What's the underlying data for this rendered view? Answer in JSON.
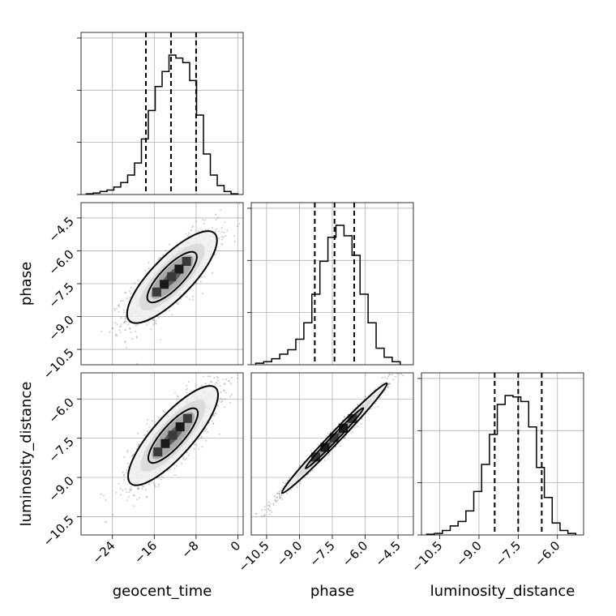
{
  "chart_data": {
    "type": "corner",
    "parameters": [
      "geocent_time",
      "phase",
      "luminosity_distance"
    ],
    "axis_labels": {
      "geocent_time": "geocent_time",
      "phase": "phase",
      "luminosity_distance": "luminosity_distance"
    },
    "ranges": {
      "geocent_time": [
        -30,
        1
      ],
      "phase": [
        -11.2,
        -3.8
      ],
      "luminosity_distance": [
        -11.2,
        -5.0
      ]
    },
    "ticks": {
      "geocent_time": [
        -24,
        -16,
        -8,
        0
      ],
      "phase": [
        -10.5,
        -9.0,
        -7.5,
        -6.0,
        -4.5
      ],
      "luminosity_distance": [
        -10.5,
        -9.0,
        -7.5,
        -6.0
      ]
    },
    "tick_labels": {
      "geocent_time": [
        "−24",
        "−16",
        "−8",
        "0"
      ],
      "phase": [
        "−10.5",
        "−9.0",
        "−7.5",
        "−6.0",
        "−4.5"
      ],
      "luminosity_distance": [
        "−10.5",
        "−9.0",
        "−7.5",
        "−6.0"
      ]
    },
    "quantiles": {
      "geocent_time": [
        -17.6,
        -12.8,
        -8.0
      ],
      "phase": [
        -8.3,
        -7.4,
        -6.5
      ],
      "luminosity_distance": [
        -8.4,
        -7.5,
        -6.6
      ]
    },
    "histograms": {
      "geocent_time": [
        0.005,
        0.01,
        0.02,
        0.03,
        0.05,
        0.08,
        0.13,
        0.21,
        0.37,
        0.56,
        0.72,
        0.82,
        0.93,
        0.91,
        0.88,
        0.76,
        0.53,
        0.27,
        0.13,
        0.06,
        0.02,
        0.005
      ],
      "phase": [
        0.01,
        0.02,
        0.04,
        0.07,
        0.1,
        0.17,
        0.28,
        0.47,
        0.69,
        0.85,
        0.93,
        0.86,
        0.73,
        0.47,
        0.28,
        0.11,
        0.05,
        0.02
      ],
      "luminosity_distance": [
        0.005,
        0.01,
        0.03,
        0.06,
        0.09,
        0.16,
        0.29,
        0.47,
        0.67,
        0.87,
        0.93,
        0.92,
        0.89,
        0.72,
        0.45,
        0.25,
        0.08,
        0.03,
        0.01
      ]
    },
    "joint": [
      {
        "x": "geocent_time",
        "y": "phase",
        "center": [
          -12.6,
          -7.2
        ],
        "sigma": [
          4.3,
          1.05
        ],
        "rho": 0.8
      },
      {
        "x": "geocent_time",
        "y": "luminosity_distance",
        "center": [
          -12.4,
          -7.4
        ],
        "sigma": [
          4.3,
          0.95
        ],
        "rho": 0.82
      },
      {
        "x": "phase",
        "y": "luminosity_distance",
        "center": [
          -7.4,
          -7.5
        ],
        "sigma": [
          1.2,
          1.05
        ],
        "rho": 0.99
      }
    ],
    "grid": true
  }
}
